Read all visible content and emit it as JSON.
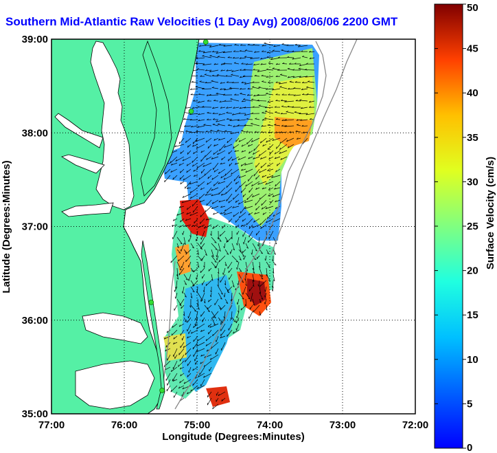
{
  "title": "Southern Mid-Atlantic Raw Velocities (1 Day Avg) 2008/06/06 2200 GMT",
  "axes": {
    "xlabel": "Longitude (Degrees:Minutes)",
    "ylabel": "Latitude (Degrees:Minutes)",
    "xticks": [
      "77:00",
      "76:00",
      "75:00",
      "74:00",
      "73:00",
      "72:00"
    ],
    "yticks": [
      "39:00",
      "38:00",
      "37:00",
      "36:00",
      "35:00"
    ],
    "xlim": [
      -77,
      -72
    ],
    "ylim": [
      35,
      39
    ],
    "grid": "dotted"
  },
  "colorbar": {
    "label": "Surface Velocity (cm/s)",
    "ticks": [
      "0",
      "5",
      "10",
      "15",
      "20",
      "25",
      "30",
      "35",
      "40",
      "45",
      "50"
    ],
    "range": [
      0,
      50
    ],
    "colormap": "jet"
  },
  "colors": {
    "land": "#55f0a5",
    "water": "#ffffff",
    "title": "#0000ff",
    "stations": "#33dd33",
    "bathymetry": "#888888"
  },
  "stations": [
    {
      "lon": -74.88,
      "lat": 38.97
    },
    {
      "lon": -75.08,
      "lat": 38.23
    },
    {
      "lon": -75.63,
      "lat": 36.19
    },
    {
      "lon": -75.48,
      "lat": 35.25
    }
  ]
}
